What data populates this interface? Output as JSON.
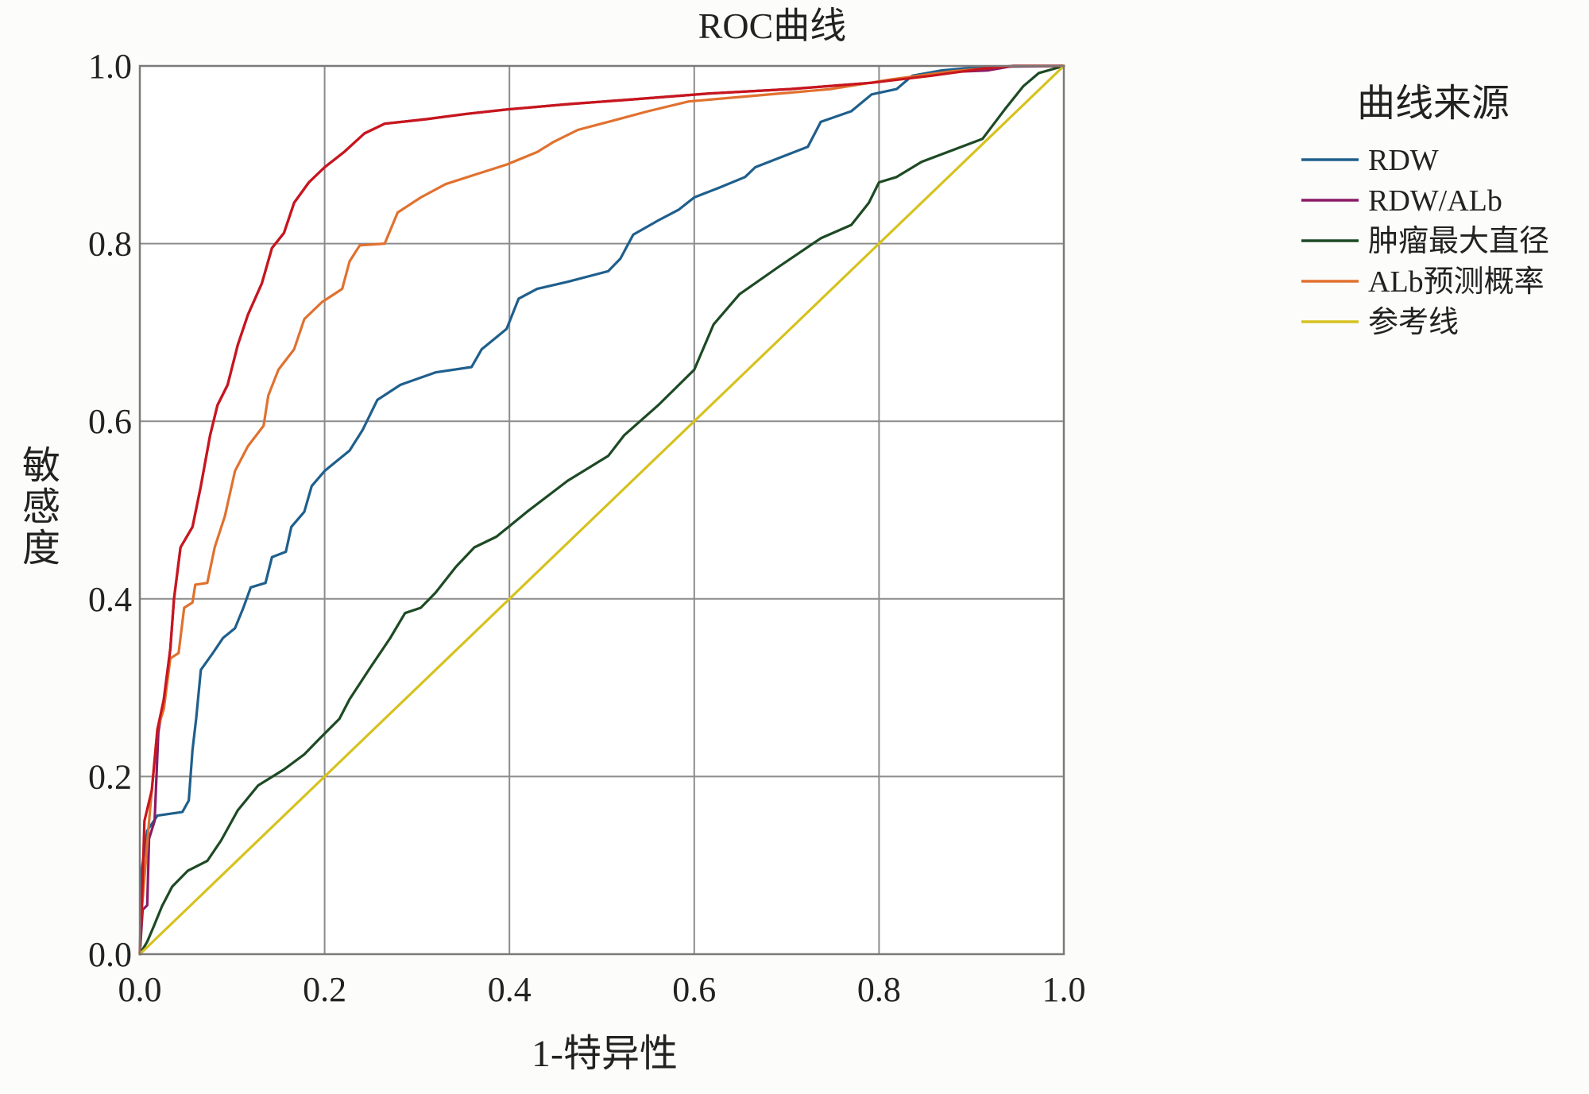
{
  "chart_data": {
    "type": "line",
    "title": "ROC曲线",
    "xlabel": "1-特异性",
    "ylabel": "敏感度",
    "xlim": [
      0,
      1
    ],
    "ylim": [
      0,
      1
    ],
    "x_ticks": [
      "0.0",
      "0.2",
      "0.4",
      "0.6",
      "0.8",
      "1.0"
    ],
    "y_ticks": [
      "0.0",
      "0.2",
      "0.4",
      "0.6",
      "0.8",
      "1.0"
    ],
    "grid": true,
    "legend": {
      "title": "曲线来源",
      "placement": "right"
    },
    "series": [
      {
        "name": "RDW",
        "color": "#1f5f8c",
        "points": [
          [
            0,
            0
          ],
          [
            0.002,
            0.094
          ],
          [
            0.008,
            0.139
          ],
          [
            0.019,
            0.156
          ],
          [
            0.046,
            0.16
          ],
          [
            0.053,
            0.173
          ],
          [
            0.057,
            0.23
          ],
          [
            0.061,
            0.265
          ],
          [
            0.066,
            0.32
          ],
          [
            0.079,
            0.339
          ],
          [
            0.09,
            0.356
          ],
          [
            0.103,
            0.367
          ],
          [
            0.112,
            0.39
          ],
          [
            0.12,
            0.413
          ],
          [
            0.136,
            0.418
          ],
          [
            0.143,
            0.447
          ],
          [
            0.158,
            0.453
          ],
          [
            0.164,
            0.481
          ],
          [
            0.178,
            0.498
          ],
          [
            0.186,
            0.527
          ],
          [
            0.2,
            0.544
          ],
          [
            0.227,
            0.567
          ],
          [
            0.241,
            0.59
          ],
          [
            0.257,
            0.624
          ],
          [
            0.282,
            0.641
          ],
          [
            0.32,
            0.655
          ],
          [
            0.359,
            0.661
          ],
          [
            0.37,
            0.681
          ],
          [
            0.397,
            0.704
          ],
          [
            0.41,
            0.738
          ],
          [
            0.43,
            0.749
          ],
          [
            0.463,
            0.757
          ],
          [
            0.507,
            0.769
          ],
          [
            0.52,
            0.783
          ],
          [
            0.534,
            0.81
          ],
          [
            0.561,
            0.826
          ],
          [
            0.583,
            0.838
          ],
          [
            0.6,
            0.852
          ],
          [
            0.627,
            0.863
          ],
          [
            0.655,
            0.875
          ],
          [
            0.666,
            0.886
          ],
          [
            0.693,
            0.897
          ],
          [
            0.723,
            0.909
          ],
          [
            0.737,
            0.937
          ],
          [
            0.77,
            0.949
          ],
          [
            0.792,
            0.968
          ],
          [
            0.819,
            0.974
          ],
          [
            0.836,
            0.989
          ],
          [
            0.868,
            0.995
          ],
          [
            0.912,
            0.999
          ],
          [
            1,
            1
          ]
        ]
      },
      {
        "name": "RDW/ALb",
        "color": "#8a1a66",
        "points": [
          [
            0,
            0
          ],
          [
            0.003,
            0.05
          ],
          [
            0.008,
            0.055
          ],
          [
            0.01,
            0.13
          ],
          [
            0.016,
            0.15
          ],
          [
            0.02,
            0.25
          ],
          [
            0.026,
            0.287
          ],
          [
            0.033,
            0.344
          ],
          [
            0.037,
            0.4
          ],
          [
            0.044,
            0.458
          ],
          [
            0.057,
            0.481
          ],
          [
            0.066,
            0.527
          ],
          [
            0.076,
            0.584
          ],
          [
            0.084,
            0.618
          ],
          [
            0.095,
            0.641
          ],
          [
            0.106,
            0.686
          ],
          [
            0.117,
            0.72
          ],
          [
            0.132,
            0.755
          ],
          [
            0.143,
            0.795
          ],
          [
            0.156,
            0.812
          ],
          [
            0.167,
            0.846
          ],
          [
            0.183,
            0.869
          ],
          [
            0.2,
            0.886
          ],
          [
            0.221,
            0.903
          ],
          [
            0.243,
            0.924
          ],
          [
            0.265,
            0.935
          ],
          [
            0.309,
            0.94
          ],
          [
            0.353,
            0.946
          ],
          [
            0.397,
            0.951
          ],
          [
            0.463,
            0.957
          ],
          [
            0.529,
            0.962
          ],
          [
            0.616,
            0.969
          ],
          [
            0.704,
            0.974
          ],
          [
            0.792,
            0.981
          ],
          [
            0.874,
            0.993
          ],
          [
            0.918,
            0.995
          ],
          [
            0.945,
            1
          ],
          [
            1,
            1
          ]
        ]
      },
      {
        "name": "肿瘤最大直径",
        "color": "#1d4a24",
        "points": [
          [
            0,
            0
          ],
          [
            0.008,
            0.014
          ],
          [
            0.015,
            0.031
          ],
          [
            0.024,
            0.054
          ],
          [
            0.035,
            0.076
          ],
          [
            0.052,
            0.094
          ],
          [
            0.073,
            0.105
          ],
          [
            0.088,
            0.128
          ],
          [
            0.106,
            0.162
          ],
          [
            0.128,
            0.19
          ],
          [
            0.156,
            0.208
          ],
          [
            0.178,
            0.225
          ],
          [
            0.194,
            0.242
          ],
          [
            0.216,
            0.265
          ],
          [
            0.227,
            0.287
          ],
          [
            0.249,
            0.322
          ],
          [
            0.271,
            0.356
          ],
          [
            0.287,
            0.384
          ],
          [
            0.304,
            0.39
          ],
          [
            0.32,
            0.407
          ],
          [
            0.342,
            0.436
          ],
          [
            0.362,
            0.458
          ],
          [
            0.386,
            0.47
          ],
          [
            0.419,
            0.498
          ],
          [
            0.463,
            0.533
          ],
          [
            0.507,
            0.561
          ],
          [
            0.524,
            0.584
          ],
          [
            0.561,
            0.618
          ],
          [
            0.6,
            0.658
          ],
          [
            0.621,
            0.709
          ],
          [
            0.649,
            0.743
          ],
          [
            0.693,
            0.775
          ],
          [
            0.737,
            0.806
          ],
          [
            0.77,
            0.821
          ],
          [
            0.789,
            0.846
          ],
          [
            0.8,
            0.869
          ],
          [
            0.819,
            0.875
          ],
          [
            0.846,
            0.892
          ],
          [
            0.879,
            0.905
          ],
          [
            0.912,
            0.918
          ],
          [
            0.936,
            0.951
          ],
          [
            0.956,
            0.977
          ],
          [
            0.973,
            0.992
          ],
          [
            1,
            1
          ]
        ]
      },
      {
        "name": "ALb预测概率",
        "color": "#e0712f",
        "points": [
          [
            0,
            0
          ],
          [
            0.002,
            0.048
          ],
          [
            0.011,
            0.162
          ],
          [
            0.019,
            0.253
          ],
          [
            0.026,
            0.276
          ],
          [
            0.033,
            0.333
          ],
          [
            0.042,
            0.339
          ],
          [
            0.048,
            0.39
          ],
          [
            0.057,
            0.396
          ],
          [
            0.06,
            0.416
          ],
          [
            0.073,
            0.418
          ],
          [
            0.081,
            0.458
          ],
          [
            0.092,
            0.493
          ],
          [
            0.103,
            0.544
          ],
          [
            0.117,
            0.572
          ],
          [
            0.134,
            0.595
          ],
          [
            0.139,
            0.629
          ],
          [
            0.15,
            0.658
          ],
          [
            0.167,
            0.681
          ],
          [
            0.178,
            0.715
          ],
          [
            0.197,
            0.734
          ],
          [
            0.219,
            0.749
          ],
          [
            0.227,
            0.78
          ],
          [
            0.238,
            0.798
          ],
          [
            0.265,
            0.8
          ],
          [
            0.279,
            0.835
          ],
          [
            0.304,
            0.852
          ],
          [
            0.331,
            0.867
          ],
          [
            0.364,
            0.878
          ],
          [
            0.397,
            0.889
          ],
          [
            0.43,
            0.903
          ],
          [
            0.447,
            0.914
          ],
          [
            0.474,
            0.928
          ],
          [
            0.507,
            0.937
          ],
          [
            0.55,
            0.949
          ],
          [
            0.594,
            0.96
          ],
          [
            0.66,
            0.966
          ],
          [
            0.748,
            0.974
          ],
          [
            0.814,
            0.985
          ],
          [
            0.879,
            0.994
          ],
          [
            0.945,
            1
          ],
          [
            1,
            1
          ]
        ]
      },
      {
        "color": "#c8161d",
        "points": [
          [
            0,
            0
          ],
          [
            0.002,
            0.048
          ],
          [
            0.005,
            0.15
          ],
          [
            0.013,
            0.185
          ],
          [
            0.019,
            0.253
          ],
          [
            0.026,
            0.287
          ],
          [
            0.033,
            0.344
          ],
          [
            0.037,
            0.4
          ],
          [
            0.044,
            0.458
          ],
          [
            0.057,
            0.481
          ],
          [
            0.066,
            0.527
          ],
          [
            0.076,
            0.584
          ],
          [
            0.084,
            0.618
          ],
          [
            0.095,
            0.641
          ],
          [
            0.106,
            0.686
          ],
          [
            0.117,
            0.72
          ],
          [
            0.132,
            0.755
          ],
          [
            0.143,
            0.795
          ],
          [
            0.156,
            0.812
          ],
          [
            0.167,
            0.846
          ],
          [
            0.183,
            0.869
          ],
          [
            0.2,
            0.886
          ],
          [
            0.221,
            0.903
          ],
          [
            0.243,
            0.924
          ],
          [
            0.265,
            0.935
          ],
          [
            0.309,
            0.94
          ],
          [
            0.353,
            0.946
          ],
          [
            0.397,
            0.951
          ],
          [
            0.463,
            0.957
          ],
          [
            0.529,
            0.962
          ],
          [
            0.616,
            0.969
          ],
          [
            0.704,
            0.974
          ],
          [
            0.792,
            0.981
          ],
          [
            0.857,
            0.989
          ],
          [
            0.912,
            0.997
          ],
          [
            0.945,
            1
          ],
          [
            1,
            1
          ]
        ]
      },
      {
        "name": "参考线",
        "color": "#d6c21f",
        "points": [
          [
            0,
            0
          ],
          [
            1,
            1
          ]
        ]
      }
    ]
  }
}
